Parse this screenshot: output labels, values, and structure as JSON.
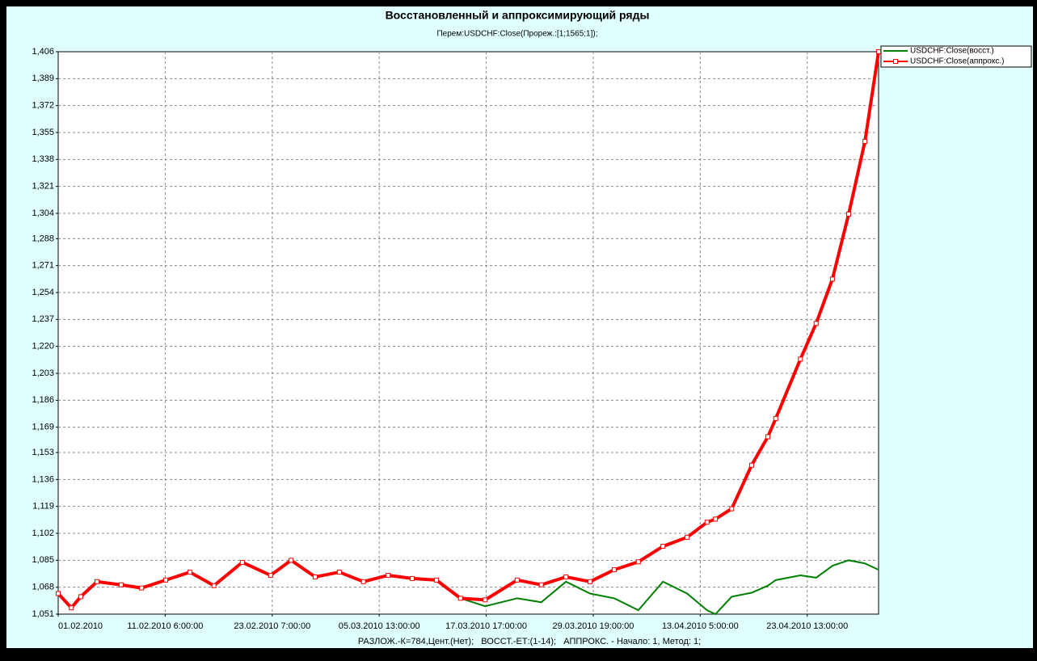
{
  "chart_data": {
    "type": "line",
    "title": "Восстановленный и аппроксимирующий ряды",
    "subtitle": "Перем:USDCHF:Close(Прореж.:[1;1565;1]);",
    "footer": "РАЗЛОЖ.-К=784,Цент.(Нет);   ВОССТ.-ЕТ:(1-14);   АППРОКС. - Начало: 1, Метод: 1;",
    "x": [
      1,
      26,
      44,
      75,
      121,
      160,
      206,
      252,
      298,
      352,
      406,
      445,
      491,
      537,
      583,
      630,
      676,
      722,
      768,
      815,
      876,
      922,
      969,
      1015,
      1061,
      1107,
      1154,
      1200,
      1238,
      1254,
      1285,
      1323,
      1354,
      1369,
      1416,
      1446,
      1477,
      1508,
      1539,
      1565
    ],
    "xlim": [
      1,
      1565
    ],
    "xticks": [
      {
        "value": 1,
        "label": "01.02.2010"
      },
      {
        "value": 205,
        "label": "11.02.2010 6:00:00"
      },
      {
        "value": 409,
        "label": "23.02.2010 7:00:00"
      },
      {
        "value": 613,
        "label": "05.03.2010 13:00:00"
      },
      {
        "value": 817,
        "label": "17.03.2010 17:00:00"
      },
      {
        "value": 1021,
        "label": "29.03.2010 19:00:00"
      },
      {
        "value": 1225,
        "label": "13.04.2010 5:00:00"
      },
      {
        "value": 1429,
        "label": "23.04.2010 13:00:00"
      }
    ],
    "ylim": [
      1.051,
      1.406
    ],
    "yticks": [
      {
        "value": 1.051,
        "label": "1,051"
      },
      {
        "value": 1.068,
        "label": "1,068"
      },
      {
        "value": 1.085,
        "label": "1,085"
      },
      {
        "value": 1.102,
        "label": "1,102"
      },
      {
        "value": 1.119,
        "label": "1,119"
      },
      {
        "value": 1.136,
        "label": "1,136"
      },
      {
        "value": 1.153,
        "label": "1,153"
      },
      {
        "value": 1.169,
        "label": "1,169"
      },
      {
        "value": 1.186,
        "label": "1,186"
      },
      {
        "value": 1.203,
        "label": "1,203"
      },
      {
        "value": 1.22,
        "label": "1,220"
      },
      {
        "value": 1.237,
        "label": "1,237"
      },
      {
        "value": 1.254,
        "label": "1,254"
      },
      {
        "value": 1.271,
        "label": "1,271"
      },
      {
        "value": 1.288,
        "label": "1,288"
      },
      {
        "value": 1.304,
        "label": "1,304"
      },
      {
        "value": 1.321,
        "label": "1,321"
      },
      {
        "value": 1.338,
        "label": "1,338"
      },
      {
        "value": 1.355,
        "label": "1,355"
      },
      {
        "value": 1.372,
        "label": "1,372"
      },
      {
        "value": 1.389,
        "label": "1,389"
      },
      {
        "value": 1.406,
        "label": "1,406"
      }
    ],
    "grid": true,
    "legend": "right",
    "series": [
      {
        "name": "USDCHF:Close(восст.)",
        "color": "#008000",
        "marker": "none",
        "values": [
          1.064,
          1.055,
          1.062,
          1.0715,
          1.0695,
          1.0675,
          1.0725,
          1.0775,
          1.069,
          1.0837,
          1.0755,
          1.085,
          1.0745,
          1.0775,
          1.0715,
          1.0755,
          1.0735,
          1.0725,
          1.061,
          1.056,
          1.061,
          1.0585,
          1.0715,
          1.064,
          1.061,
          1.0535,
          1.0715,
          1.064,
          1.0535,
          1.051,
          1.062,
          1.0645,
          1.069,
          1.0725,
          1.0755,
          1.074,
          1.0815,
          1.085,
          1.083,
          1.079
        ]
      },
      {
        "name": "USDCHF:Close(аппрокс.)",
        "color": "#ff0000",
        "marker": "square",
        "values": [
          1.064,
          1.055,
          1.062,
          1.0715,
          1.0695,
          1.0675,
          1.0725,
          1.0775,
          1.069,
          1.0837,
          1.0755,
          1.085,
          1.0745,
          1.0775,
          1.0715,
          1.0755,
          1.0735,
          1.0725,
          1.061,
          1.06,
          1.0725,
          1.0695,
          1.0745,
          1.0715,
          1.079,
          1.084,
          1.0938,
          1.0995,
          1.109,
          1.111,
          1.1175,
          1.145,
          1.163,
          1.1745,
          1.212,
          1.2345,
          1.2625,
          1.3035,
          1.3494,
          1.406
        ]
      }
    ]
  }
}
